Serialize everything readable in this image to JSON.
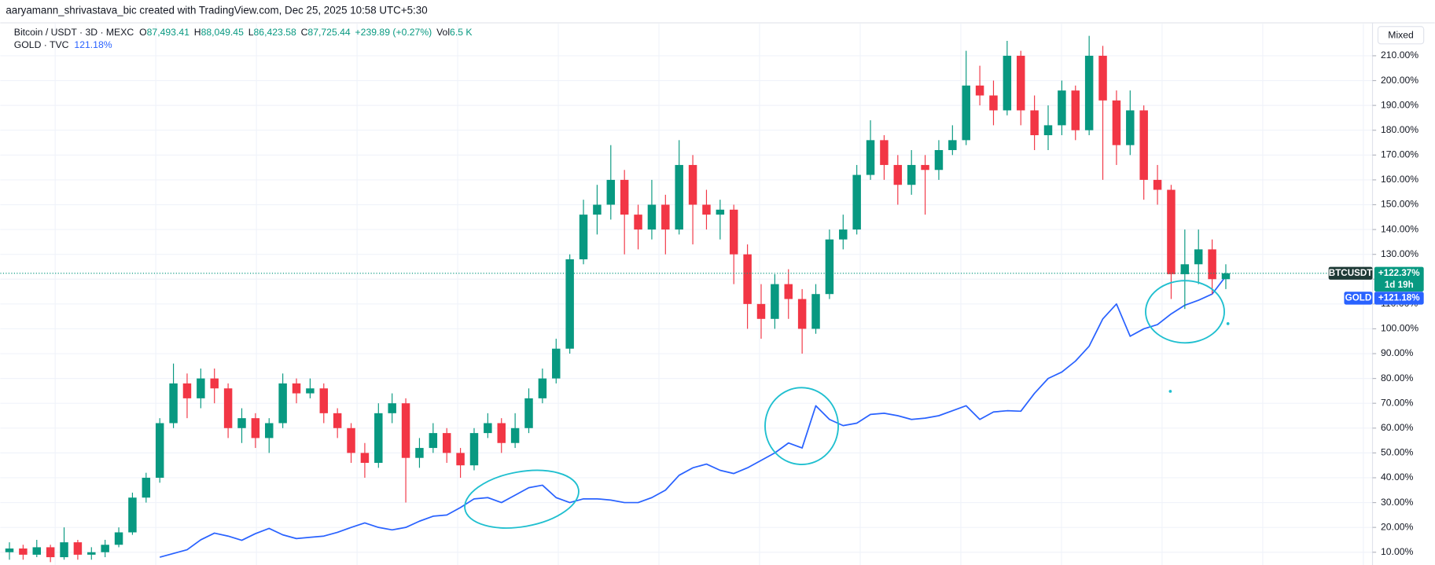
{
  "header": {
    "attribution": "aaryamann_shrivastava_bic created with TradingView.com, Dec 25, 2025 10:58 UTC+5:30",
    "legend": {
      "symbol": "Bitcoin / USDT · 3D · MEXC",
      "open_key": "O",
      "open": "87,493.41",
      "high_key": "H",
      "high": "88,049.45",
      "low_key": "L",
      "low": "86,423.58",
      "close_key": "C",
      "close": "87,725.44",
      "change": "+239.89 (+0.27%)",
      "volume_key": "Vol",
      "volume": "6.5 K",
      "compare_symbol": "GOLD · TVC",
      "compare_value": "121.18%"
    },
    "scale_mode": "Mixed"
  },
  "chart_data": {
    "type": "candlestick",
    "ylim": [
      5,
      222
    ],
    "yticks": [
      {
        "value": 10,
        "label": "10.00%"
      },
      {
        "value": 20,
        "label": "20.00%"
      },
      {
        "value": 30,
        "label": "30.00%"
      },
      {
        "value": 40,
        "label": "40.00%"
      },
      {
        "value": 50,
        "label": "50.00%"
      },
      {
        "value": 60,
        "label": "60.00%"
      },
      {
        "value": 70,
        "label": "70.00%"
      },
      {
        "value": 80,
        "label": "80.00%"
      },
      {
        "value": 90,
        "label": "90.00%"
      },
      {
        "value": 100,
        "label": "100.00%"
      },
      {
        "value": 110,
        "label": "110.00%"
      },
      {
        "value": 120,
        "label": "120.00%"
      },
      {
        "value": 130,
        "label": "130.00%"
      },
      {
        "value": 140,
        "label": "140.00%"
      },
      {
        "value": 150,
        "label": "150.00%"
      },
      {
        "value": 160,
        "label": "160.00%"
      },
      {
        "value": 170,
        "label": "170.00%"
      },
      {
        "value": 180,
        "label": "180.00%"
      },
      {
        "value": 190,
        "label": "190.00%"
      },
      {
        "value": 200,
        "label": "200.00%"
      },
      {
        "value": 210,
        "label": "210.00%"
      }
    ],
    "grid": true,
    "series": [
      {
        "name": "BTCUSDT",
        "type": "candlestick",
        "up_color": "#089981",
        "down_color": "#f23645",
        "last_label": "+122.37%",
        "countdown": "1d 19h",
        "open": [
          10,
          11.5,
          9,
          12,
          8,
          14,
          9,
          10,
          13,
          18,
          32,
          40,
          62,
          78,
          72,
          80,
          76,
          60,
          64,
          56,
          62,
          78,
          74,
          76,
          66,
          60,
          50,
          46,
          66,
          70,
          48,
          52,
          58,
          50,
          45,
          58,
          62,
          54,
          60,
          72,
          80,
          92,
          128,
          146,
          150,
          160,
          146,
          140,
          150,
          140,
          166,
          150,
          146,
          148,
          130,
          110,
          104,
          118,
          112,
          100,
          114,
          136,
          140,
          162,
          176,
          166,
          158,
          166,
          164,
          172,
          176,
          198,
          194,
          188,
          210,
          188,
          178,
          182,
          196,
          180,
          210,
          192,
          174,
          188,
          160,
          156,
          122,
          126,
          132,
          120
        ],
        "high": [
          14,
          13,
          15,
          13,
          20,
          15,
          12,
          15,
          20,
          34,
          42,
          64,
          86,
          82,
          84,
          84,
          78,
          68,
          66,
          64,
          82,
          80,
          80,
          78,
          68,
          62,
          54,
          70,
          74,
          72,
          56,
          62,
          60,
          52,
          60,
          66,
          64,
          66,
          76,
          84,
          96,
          130,
          152,
          158,
          174,
          164,
          150,
          160,
          154,
          176,
          170,
          156,
          152,
          150,
          134,
          118,
          122,
          124,
          116,
          118,
          140,
          146,
          166,
          184,
          178,
          170,
          172,
          170,
          176,
          182,
          212,
          206,
          200,
          216,
          212,
          194,
          190,
          200,
          198,
          218,
          214,
          196,
          196,
          190,
          166,
          158,
          140,
          140,
          136,
          126
        ],
        "low": [
          7,
          7,
          8,
          6,
          7,
          7,
          7,
          8,
          12,
          17,
          30,
          38,
          60,
          64,
          68,
          70,
          56,
          54,
          52,
          50,
          60,
          70,
          72,
          62,
          56,
          46,
          40,
          44,
          62,
          30,
          44,
          50,
          46,
          40,
          43,
          56,
          50,
          52,
          58,
          70,
          78,
          90,
          126,
          138,
          144,
          130,
          132,
          136,
          130,
          138,
          134,
          140,
          136,
          118,
          100,
          96,
          100,
          104,
          90,
          98,
          112,
          132,
          138,
          160,
          160,
          150,
          154,
          146,
          160,
          170,
          174,
          190,
          182,
          186,
          182,
          172,
          172,
          178,
          176,
          178,
          160,
          166,
          170,
          152,
          150,
          112,
          108,
          118,
          114,
          116
        ],
        "close": [
          11.5,
          9,
          12,
          8,
          14,
          9,
          10,
          13,
          18,
          32,
          40,
          62,
          78,
          72,
          80,
          76,
          60,
          64,
          56,
          62,
          78,
          74,
          76,
          66,
          60,
          50,
          46,
          66,
          70,
          48,
          52,
          58,
          50,
          45,
          58,
          62,
          54,
          60,
          72,
          80,
          92,
          128,
          146,
          150,
          160,
          146,
          140,
          150,
          140,
          166,
          150,
          146,
          148,
          130,
          110,
          104,
          118,
          112,
          100,
          114,
          136,
          140,
          162,
          176,
          166,
          158,
          166,
          164,
          172,
          176,
          198,
          194,
          188,
          210,
          188,
          178,
          182,
          196,
          180,
          210,
          192,
          174,
          188,
          160,
          156,
          122,
          126,
          132,
          120,
          122.37
        ]
      },
      {
        "name": "GOLD",
        "type": "line",
        "color": "#2962ff",
        "last_label": "+121.18%",
        "values": [
          null,
          null,
          null,
          null,
          null,
          null,
          null,
          null,
          null,
          null,
          null,
          8,
          9.5,
          11,
          15,
          17.7,
          16.5,
          14.8,
          17.5,
          19.6,
          17,
          15.5,
          16,
          16.5,
          18,
          20,
          21.8,
          20,
          19,
          20,
          22.5,
          24.5,
          25,
          28,
          31.5,
          32,
          30,
          33,
          36,
          37,
          32,
          30,
          31.5,
          31.5,
          31,
          30,
          30,
          32,
          35,
          41,
          44,
          45.5,
          43,
          41.7,
          44,
          47,
          50,
          54,
          52,
          69,
          63.5,
          61,
          62,
          65.5,
          66,
          65,
          63.5,
          64,
          65,
          67,
          69,
          63.5,
          66.5,
          67,
          66.8,
          74,
          80,
          82.6,
          87,
          93,
          104,
          110,
          97,
          100,
          101.7,
          106,
          109.5,
          111.5,
          114,
          121.18
        ]
      }
    ]
  }
}
